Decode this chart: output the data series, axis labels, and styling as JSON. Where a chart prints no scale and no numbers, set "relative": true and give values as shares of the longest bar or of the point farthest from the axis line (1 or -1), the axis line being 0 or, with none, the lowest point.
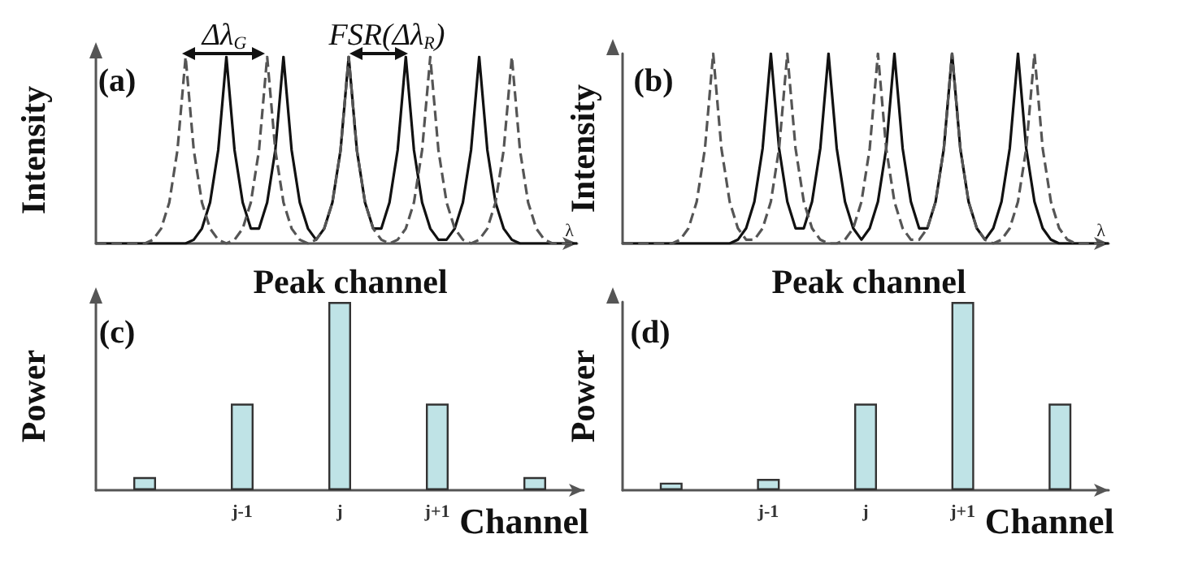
{
  "chart_data": [
    {
      "type": "line",
      "relative": true,
      "xlabel": "λ",
      "ylabel": "Intensity",
      "marker": "none",
      "annotations": [
        "(a)",
        "Δλ$_{G}$",
        "FSR(Δλ$_{R}$)"
      ],
      "categories": [
        null,
        null,
        null,
        null,
        null,
        null,
        null,
        null,
        null,
        null,
        null,
        null,
        null,
        null,
        null,
        null,
        null,
        null,
        null,
        null,
        null,
        null,
        null,
        null,
        null,
        null,
        null,
        null,
        null,
        null,
        null,
        null,
        null,
        null,
        null,
        null,
        null,
        null,
        null,
        null,
        null,
        null,
        null,
        null,
        null,
        null,
        null,
        null,
        null,
        null,
        null,
        null,
        null,
        null,
        null,
        null,
        null,
        null,
        null,
        null
      ],
      "series": [
        {
          "color": "#111111",
          "line_style": "solid",
          "values": [
            0,
            0,
            0,
            0,
            0,
            0,
            0,
            0,
            0,
            0,
            0,
            0,
            0.02,
            0.08,
            0.22,
            0.5,
            1,
            0.5,
            0.22,
            0.08,
            0.08,
            0.22,
            0.5,
            1,
            0.5,
            0.22,
            0.08,
            0.02,
            0.08,
            0.22,
            0.5,
            1,
            0.5,
            0.22,
            0.08,
            0.08,
            0.22,
            0.5,
            1,
            0.5,
            0.22,
            0.08,
            0.02,
            0.02,
            0.08,
            0.22,
            0.5,
            1,
            0.5,
            0.22,
            0.08,
            0.02,
            0,
            0,
            0,
            0,
            0,
            0,
            0,
            0
          ]
        },
        {
          "color": "#555555",
          "line_style": "dashed",
          "values": [
            0,
            0,
            0,
            0,
            0,
            0,
            0,
            0.02,
            0.08,
            0.22,
            0.5,
            1,
            0.5,
            0.22,
            0.08,
            0.02,
            0,
            0.02,
            0.08,
            0.22,
            0.5,
            1,
            0.5,
            0.22,
            0.08,
            0.02,
            0,
            0.02,
            0.08,
            0.22,
            0.5,
            1,
            0.5,
            0.22,
            0.08,
            0.02,
            0,
            0.02,
            0.08,
            0.22,
            0.5,
            1,
            0.5,
            0.22,
            0.08,
            0.02,
            0,
            0.02,
            0.08,
            0.22,
            0.5,
            1,
            0.5,
            0.22,
            0.08,
            0.02,
            0,
            0,
            0,
            0
          ]
        }
      ]
    },
    {
      "type": "line",
      "relative": true,
      "xlabel": "λ",
      "ylabel": "Intensity",
      "marker": "none",
      "annotations": [
        "(b)"
      ],
      "categories": [
        null,
        null,
        null,
        null,
        null,
        null,
        null,
        null,
        null,
        null,
        null,
        null,
        null,
        null,
        null,
        null,
        null,
        null,
        null,
        null,
        null,
        null,
        null,
        null,
        null,
        null,
        null,
        null,
        null,
        null,
        null,
        null,
        null,
        null,
        null,
        null,
        null,
        null,
        null,
        null,
        null,
        null,
        null,
        null,
        null,
        null,
        null,
        null,
        null,
        null,
        null,
        null,
        null,
        null,
        null,
        null,
        null,
        null,
        null,
        null
      ],
      "series": [
        {
          "color": "#111111",
          "line_style": "solid",
          "values": [
            0,
            0,
            0,
            0,
            0,
            0,
            0,
            0,
            0,
            0,
            0,
            0,
            0,
            0,
            0.02,
            0.08,
            0.22,
            0.5,
            1,
            0.5,
            0.22,
            0.08,
            0.08,
            0.22,
            0.5,
            1,
            0.5,
            0.22,
            0.08,
            0.02,
            0.08,
            0.22,
            0.5,
            1,
            0.5,
            0.22,
            0.08,
            0.08,
            0.22,
            0.5,
            1,
            0.5,
            0.22,
            0.08,
            0.02,
            0.08,
            0.22,
            0.5,
            1,
            0.5,
            0.22,
            0.08,
            0.02,
            0,
            0,
            0,
            0,
            0,
            0,
            0
          ]
        },
        {
          "color": "#555555",
          "line_style": "dashed",
          "values": [
            0,
            0,
            0,
            0,
            0,
            0,
            0,
            0.02,
            0.08,
            0.22,
            0.5,
            1,
            0.5,
            0.22,
            0.08,
            0.02,
            0.02,
            0.08,
            0.22,
            0.5,
            1,
            0.5,
            0.22,
            0.08,
            0.02,
            0,
            0,
            0.02,
            0.08,
            0.22,
            0.5,
            1,
            0.5,
            0.22,
            0.08,
            0.02,
            0.02,
            0.08,
            0.22,
            0.5,
            1,
            0.5,
            0.22,
            0.08,
            0.02,
            0,
            0.02,
            0.08,
            0.22,
            0.5,
            1,
            0.5,
            0.22,
            0.08,
            0.02,
            0,
            0,
            0,
            0,
            0
          ]
        }
      ]
    },
    {
      "type": "bar",
      "relative": true,
      "title": "Peak channel",
      "xlabel": "Channel",
      "ylabel": "Power",
      "annotations": [
        "(c)"
      ],
      "categories": [
        null,
        "j-1",
        "j",
        "j+1",
        null
      ],
      "color": "#bfe3e6",
      "values": [
        0.07,
        0.46,
        1,
        0.46,
        0.07
      ]
    },
    {
      "type": "bar",
      "relative": true,
      "title": "Peak channel",
      "xlabel": "Channel",
      "ylabel": "Power",
      "annotations": [
        "(d)"
      ],
      "categories": [
        null,
        "j-1",
        "j",
        "j+1",
        null
      ],
      "color": "#bfe3e6",
      "values": [
        0.04,
        0.06,
        0.46,
        1,
        0.46
      ]
    }
  ]
}
